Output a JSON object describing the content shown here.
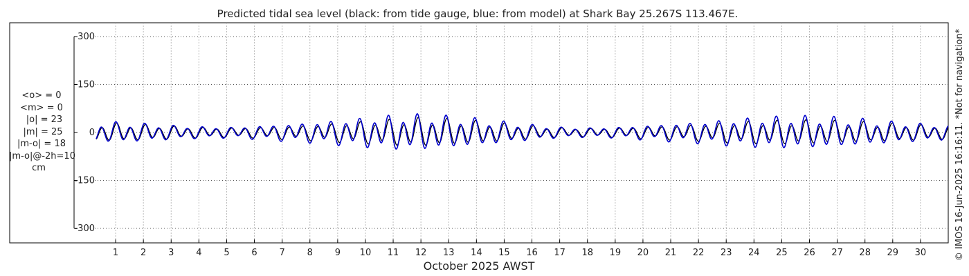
{
  "chart_data": {
    "type": "line",
    "title": "Predicted tidal sea level (black: from tide gauge, blue: from model) at Shark Bay 25.267S 113.467E.",
    "xlabel": "October 2025 AWST",
    "ylabel": "cm",
    "x_ticks": [
      "1",
      "2",
      "3",
      "4",
      "5",
      "6",
      "7",
      "8",
      "9",
      "10",
      "11",
      "12",
      "13",
      "14",
      "15",
      "16",
      "17",
      "18",
      "19",
      "20",
      "21",
      "22",
      "23",
      "24",
      "25",
      "26",
      "27",
      "28",
      "29",
      "30"
    ],
    "xlim_days": [
      0.25,
      31.0
    ],
    "y_ticks": [
      "300",
      "150",
      "0",
      "-150",
      "-300"
    ],
    "y_tick_values": [
      300,
      150,
      0,
      -150,
      -300
    ],
    "ylim": [
      -320,
      320
    ],
    "grid": true,
    "stats": [
      "<o> = 0",
      "<m> = 0",
      "|o| = 23",
      "|m| = 25",
      "|m-o| = 18",
      "|m-o|@-2h=10",
      "cm"
    ],
    "side_note": "© IMOS 16-Jun-2025 16:16:11. *Not for navigation*",
    "series": [
      {
        "name": "tide gauge",
        "color": "#000000",
        "amplitude_by_day": [
          30,
          26,
          22,
          18,
          16,
          18,
          22,
          26,
          32,
          38,
          44,
          48,
          44,
          38,
          30,
          22,
          16,
          14,
          16,
          20,
          24,
          28,
          34,
          38,
          40,
          40,
          38,
          34,
          30,
          26,
          22
        ]
      },
      {
        "name": "model",
        "color": "#0000cc",
        "amplitude_by_day": [
          34,
          30,
          24,
          20,
          18,
          22,
          28,
          34,
          42,
          50,
          58,
          60,
          54,
          46,
          36,
          26,
          18,
          16,
          18,
          24,
          30,
          36,
          44,
          50,
          54,
          54,
          50,
          44,
          36,
          30,
          24
        ]
      }
    ]
  }
}
